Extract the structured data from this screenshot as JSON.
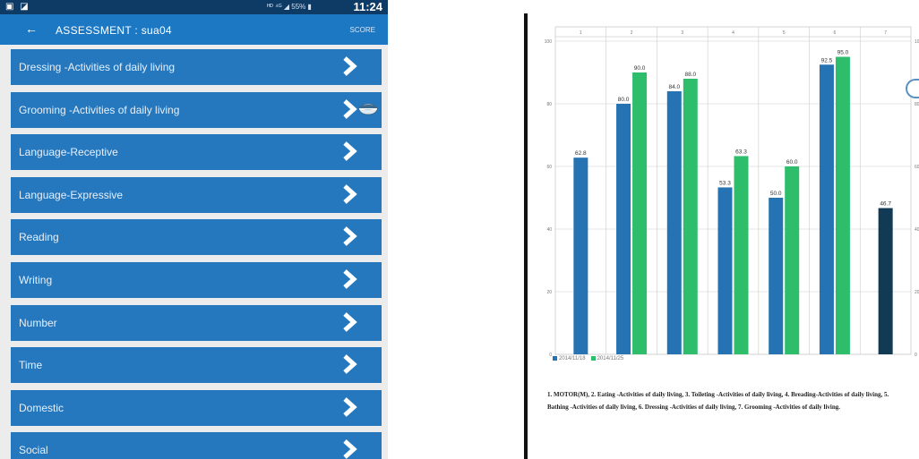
{
  "status_bar": {
    "left_icons": "▣ ◪",
    "right_icons": "ᴴᴰ ⁴ᴳ ◢ 55% ▮",
    "time": "11:24"
  },
  "app_bar": {
    "back_glyph": "←",
    "title": "ASSESSMENT : sua04",
    "score_label": "SCORE"
  },
  "items": [
    {
      "label": "Dressing -Activities of daily living"
    },
    {
      "label": "Grooming -Activities of daily living"
    },
    {
      "label": "Language-Receptive"
    },
    {
      "label": "Language-Expressive"
    },
    {
      "label": "Reading"
    },
    {
      "label": "Writing"
    },
    {
      "label": "Number"
    },
    {
      "label": "Time"
    },
    {
      "label": "Domestic"
    },
    {
      "label": "Social"
    }
  ],
  "icons": {
    "row_chevron": "chevron-right-icon",
    "overlay": "eye-icon"
  },
  "chart_data": {
    "type": "bar",
    "categories": [
      "1",
      "2",
      "3",
      "4",
      "5",
      "6",
      "7"
    ],
    "series": [
      {
        "name": "2014/11/18",
        "color": "#2573b3",
        "values": [
          62.8,
          80.0,
          84.0,
          53.3,
          50.0,
          92.5,
          null
        ]
      },
      {
        "name": "2014/11/25",
        "color": "#2ebd6b",
        "values": [
          null,
          90.0,
          88.0,
          63.3,
          60.0,
          95.0,
          null
        ]
      },
      {
        "name": "",
        "color": "#123a55",
        "values": [
          null,
          null,
          null,
          null,
          null,
          null,
          46.7
        ]
      }
    ],
    "y_ticks": [
      "0",
      "20",
      "40",
      "60",
      "80",
      "100"
    ],
    "ylim": [
      0,
      100
    ],
    "grid": true,
    "legend": "bottom-left"
  },
  "caption": "1. MOTOR(M), 2. Eating -Activities of daily living, 3. Toileting -Activities of daily living, 4. Breading-Activities of daily living, 5. Bathing -Activities of daily living, 6. Dressing -Activities of daily living, 7. Grooming -Activities of daily living."
}
